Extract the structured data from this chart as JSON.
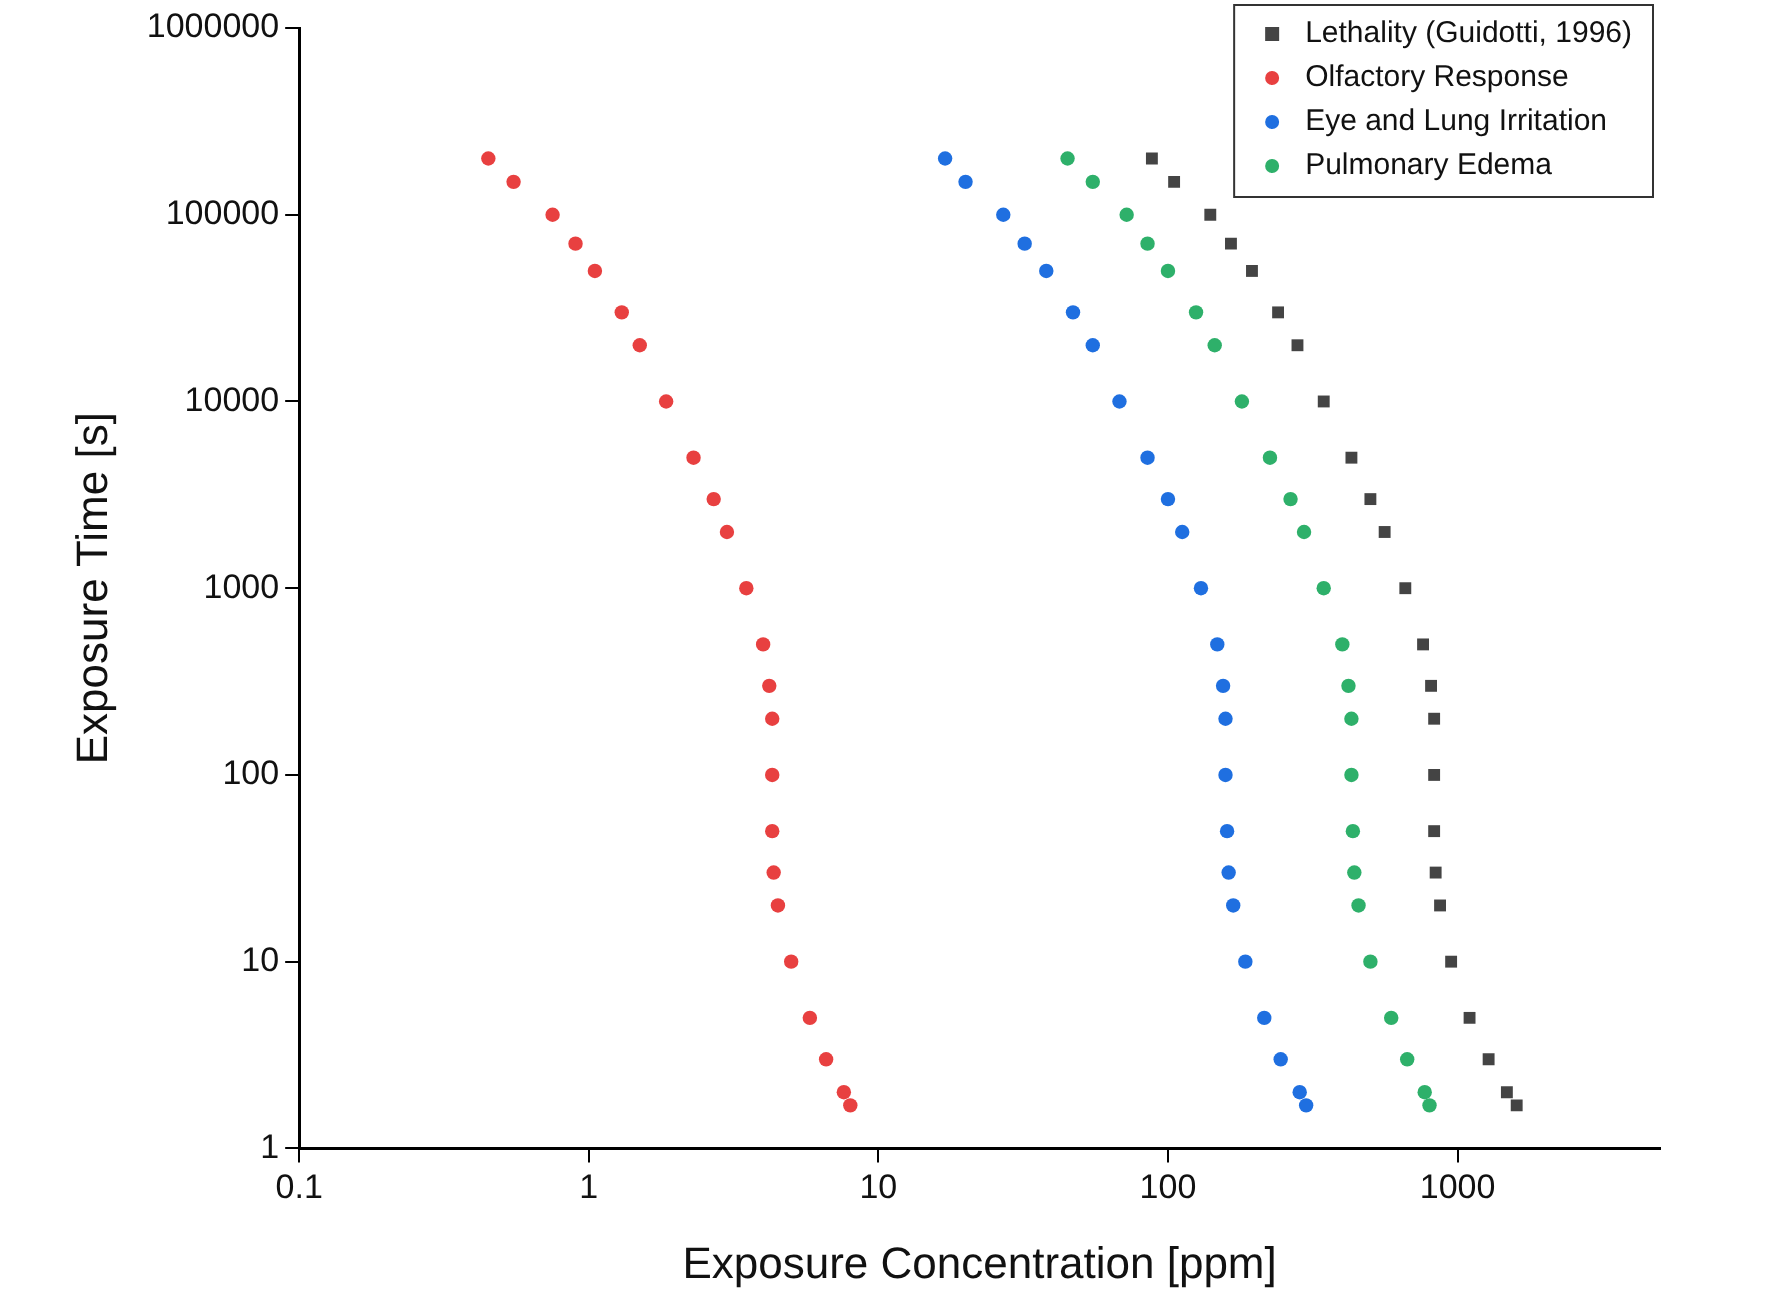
{
  "chart_data": {
    "type": "scatter",
    "xlabel": "Exposure Concentration [ppm]",
    "ylabel": "Exposure Time [s]",
    "log": "xy",
    "grid": false,
    "legend": "top right",
    "xlim": [
      0.1,
      5000
    ],
    "xticks": [
      0.1,
      1,
      10,
      100,
      1000
    ],
    "ylim": [
      1,
      1000000
    ],
    "yticks": [
      1,
      10,
      100,
      1000,
      10000,
      100000,
      1000000
    ],
    "series": [
      {
        "name": "Lethality (Guidotti, 1996)",
        "color": "#444444",
        "marker": "square",
        "x": [
          88,
          105,
          140,
          165,
          195,
          240,
          280,
          345,
          430,
          500,
          560,
          660,
          760,
          810,
          830,
          830,
          830,
          840,
          870,
          950,
          1100,
          1280,
          1480,
          1600
        ],
        "values": [
          200000,
          150000,
          100000,
          70000,
          50000,
          30000,
          20000,
          10000,
          5000,
          3000,
          2000,
          1000,
          500,
          300,
          200,
          100,
          50,
          30,
          20,
          10,
          5,
          3,
          2,
          1.7
        ]
      },
      {
        "name": "Olfactory Response",
        "color": "#e84040",
        "marker": "circle",
        "x": [
          0.45,
          0.55,
          0.75,
          0.9,
          1.05,
          1.3,
          1.5,
          1.85,
          2.3,
          2.7,
          3.0,
          3.5,
          4.0,
          4.2,
          4.3,
          4.3,
          4.3,
          4.35,
          4.5,
          5.0,
          5.8,
          6.6,
          7.6,
          8.0
        ],
        "values": [
          200000,
          150000,
          100000,
          70000,
          50000,
          30000,
          20000,
          10000,
          5000,
          3000,
          2000,
          1000,
          500,
          300,
          200,
          100,
          50,
          30,
          20,
          10,
          5,
          3,
          2,
          1.7
        ]
      },
      {
        "name": "Eye and Lung Irritation",
        "color": "#1f6fe0",
        "marker": "circle",
        "x": [
          17,
          20,
          27,
          32,
          38,
          47,
          55,
          68,
          85,
          100,
          112,
          130,
          148,
          155,
          158,
          158,
          160,
          162,
          168,
          185,
          215,
          245,
          285,
          300
        ],
        "values": [
          200000,
          150000,
          100000,
          70000,
          50000,
          30000,
          20000,
          10000,
          5000,
          3000,
          2000,
          1000,
          500,
          300,
          200,
          100,
          50,
          30,
          20,
          10,
          5,
          3,
          2,
          1.7
        ]
      },
      {
        "name": "Pulmonary Edema",
        "color": "#2eb06a",
        "marker": "circle",
        "x": [
          45,
          55,
          72,
          85,
          100,
          125,
          145,
          180,
          225,
          265,
          295,
          345,
          400,
          420,
          430,
          430,
          435,
          440,
          455,
          500,
          590,
          670,
          770,
          800
        ],
        "values": [
          200000,
          150000,
          100000,
          70000,
          50000,
          30000,
          20000,
          10000,
          5000,
          3000,
          2000,
          1000,
          500,
          300,
          200,
          100,
          50,
          30,
          20,
          10,
          5,
          3,
          2,
          1.7
        ]
      }
    ]
  }
}
